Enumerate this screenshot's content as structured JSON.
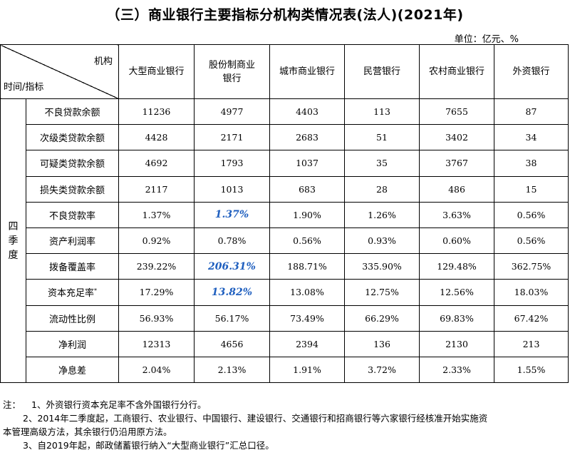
{
  "title": "（三）商业银行主要指标分机构类情况表(法人)(2021年)",
  "unit": "单位：亿元、%",
  "header": {
    "corner_top": "机构",
    "corner_bottom": "时间/指标",
    "institutions": [
      "大型商业银行",
      "股份制商业银行",
      "城市商业银行",
      "民营银行",
      "农村商业银行",
      "外资银行"
    ]
  },
  "period": "四季度",
  "rows": [
    {
      "metric": "不良贷款余额",
      "values": [
        "11236",
        "4977",
        "4403",
        "113",
        "7655",
        "87"
      ]
    },
    {
      "metric": "次级类贷款余额",
      "values": [
        "4428",
        "2171",
        "2683",
        "51",
        "3402",
        "34"
      ]
    },
    {
      "metric": "可疑类贷款余额",
      "values": [
        "4692",
        "1793",
        "1037",
        "35",
        "3767",
        "38"
      ]
    },
    {
      "metric": "损失类贷款余额",
      "values": [
        "2117",
        "1013",
        "683",
        "28",
        "486",
        "15"
      ]
    },
    {
      "metric": "不良贷款率",
      "values": [
        "1.37%",
        "1.37%",
        "1.90%",
        "1.26%",
        "3.63%",
        "0.56%"
      ],
      "highlight": 1
    },
    {
      "metric": "资产利润率",
      "values": [
        "0.92%",
        "0.78%",
        "0.56%",
        "0.93%",
        "0.60%",
        "0.56%"
      ]
    },
    {
      "metric": "拨备覆盖率",
      "values": [
        "239.22%",
        "206.31%",
        "188.71%",
        "335.90%",
        "129.48%",
        "362.75%"
      ],
      "highlight": 1
    },
    {
      "metric": "资本充足率",
      "sup": "*",
      "values": [
        "17.29%",
        "13.82%",
        "13.08%",
        "12.75%",
        "12.56%",
        "18.03%"
      ],
      "highlight": 1
    },
    {
      "metric": "流动性比例",
      "values": [
        "56.93%",
        "56.17%",
        "73.49%",
        "66.29%",
        "69.83%",
        "67.42%"
      ]
    },
    {
      "metric": "净利润",
      "values": [
        "12313",
        "4656",
        "2394",
        "136",
        "2130",
        "213"
      ]
    },
    {
      "metric": "净息差",
      "values": [
        "2.04%",
        "2.13%",
        "1.91%",
        "3.72%",
        "2.33%",
        "1.55%"
      ]
    }
  ],
  "notes": {
    "label": "注：",
    "n1": "1、外资银行资本充足率不含外国银行分行。",
    "n2a": "2、2014年二季度起，工商银行、农业银行、中国银行、建设银行、交通银行和招商银行等六家银行经核准开始实施资",
    "n2b": "本管理高级方法，其余银行仍沿用原方法。",
    "n3": "3、自2019年起，邮政储蓄银行纳入“大型商业银行”汇总口径。"
  }
}
